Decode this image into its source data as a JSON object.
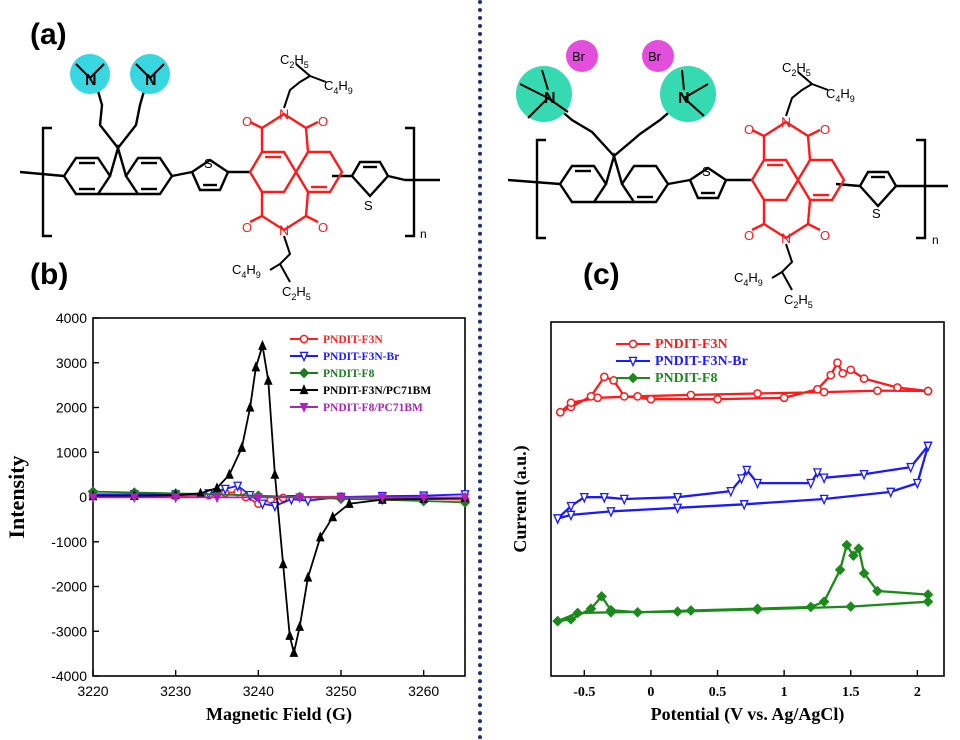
{
  "panels": {
    "a": "(a)",
    "b": "(b)",
    "c": "(c)"
  },
  "structures": {
    "left": {
      "amine_top_left": "N",
      "amine_top_right": "N",
      "imide_n_top": "N",
      "imide_n_bottom": "N",
      "thiophene_1": "S",
      "thiophene_2": "S",
      "sub_top_c": "C",
      "sub_top_c_idx": "2",
      "sub_top_h": "H",
      "sub_top_h_idx": "5",
      "sub_top2_c": "C",
      "sub_top2_c_idx": "4",
      "sub_top2_h": "H",
      "sub_top2_h_idx": "9",
      "sub_bot_c": "C",
      "sub_bot_c_idx": "4",
      "sub_bot_h": "H",
      "sub_bot_h_idx": "9",
      "sub_bot2_c": "C",
      "sub_bot2_c_idx": "2",
      "sub_bot2_h": "H",
      "sub_bot2_h_idx": "5",
      "repeat": "n"
    },
    "right": {
      "anion_1": "Br",
      "anion_2": "Br",
      "cation_1": "N",
      "cation_2": "N",
      "imide_n_top": "N",
      "imide_n_bottom": "N",
      "thiophene_1": "S",
      "thiophene_2": "S",
      "repeat": "n"
    },
    "colors": {
      "amine_circle": "#37d6e0",
      "quat_circle": "#35d9b2",
      "bromide_circle": "#e34fdc",
      "ndi": "#ff1a1a"
    }
  },
  "chart_data": [
    {
      "id": "b",
      "type": "line",
      "xlabel": "Magnetic Field (G)",
      "ylabel": "Intensity",
      "xlim": [
        3220,
        3265
      ],
      "ylim": [
        -4000,
        4000
      ],
      "xticks": [
        3220,
        3230,
        3240,
        3250,
        3260
      ],
      "yticks": [
        -4000,
        -3000,
        -2000,
        -1000,
        0,
        1000,
        2000,
        3000,
        4000
      ],
      "legend_position": "top-right",
      "series": [
        {
          "name": "PNDIT-F3N",
          "color": "#ff2020",
          "marker": "circle-open",
          "x": [
            3220,
            3225,
            3230,
            3234,
            3236,
            3237.5,
            3238.5,
            3240,
            3241.5,
            3243,
            3245,
            3250,
            3255,
            3260,
            3265
          ],
          "y": [
            30,
            30,
            30,
            40,
            90,
            110,
            0,
            -150,
            -60,
            -20,
            0,
            10,
            -20,
            -40,
            -60
          ]
        },
        {
          "name": "PNDIT-F3N-Br",
          "color": "#1a1aff",
          "marker": "triangle-down-open",
          "x": [
            3220,
            3225,
            3230,
            3234,
            3236,
            3237.5,
            3239,
            3240.5,
            3242,
            3244,
            3246,
            3250,
            3255,
            3260,
            3265
          ],
          "y": [
            60,
            60,
            60,
            80,
            180,
            250,
            40,
            -150,
            -200,
            -50,
            -80,
            0,
            20,
            30,
            60
          ]
        },
        {
          "name": "PNDIT-F8",
          "color": "#1f7a1f",
          "marker": "diamond",
          "x": [
            3220,
            3225,
            3230,
            3235,
            3240,
            3245,
            3250,
            3255,
            3260,
            3265
          ],
          "y": [
            120,
            100,
            80,
            60,
            30,
            0,
            -40,
            -60,
            -90,
            -120
          ]
        },
        {
          "name": "PNDIT-F3N/PC71BM",
          "color": "#000000",
          "marker": "triangle-up",
          "x": [
            3220,
            3225,
            3230,
            3233,
            3235,
            3236.5,
            3238,
            3239,
            3239.7,
            3240.5,
            3241.2,
            3242,
            3243,
            3243.8,
            3244.3,
            3245,
            3246,
            3247.5,
            3249,
            3251,
            3255,
            3260,
            3265
          ],
          "y": [
            20,
            25,
            40,
            80,
            200,
            500,
            1100,
            2000,
            2900,
            3380,
            2600,
            500,
            -1500,
            -3100,
            -3480,
            -2900,
            -1800,
            -900,
            -450,
            -150,
            -60,
            -40,
            -20
          ]
        },
        {
          "name": "PNDIT-F8/PC71BM",
          "color": "#b020c0",
          "marker": "triangle-down",
          "x": [
            3220,
            3225,
            3230,
            3235,
            3240,
            3245,
            3250,
            3255,
            3260,
            3265
          ],
          "y": [
            -10,
            -10,
            -10,
            -10,
            -10,
            -10,
            -10,
            -10,
            -10,
            -10
          ]
        }
      ]
    },
    {
      "id": "c",
      "type": "line",
      "xlabel": "Potential (V vs. Ag/AgCl)",
      "ylabel": "Current (a.u.)",
      "xlim": [
        -0.75,
        2.2
      ],
      "xticks": [
        -0.5,
        0,
        0.5,
        1,
        1.5,
        2
      ],
      "xtick_labels": [
        "-0.5",
        "0",
        "0.5",
        "1",
        "1.5",
        "2"
      ],
      "ylim": [
        0,
        1
      ],
      "yticks": [],
      "legend_position": "top-left",
      "series": [
        {
          "name": "PNDIT-F3N",
          "color": "#ff1a1a",
          "marker": "circle-open",
          "x": [
            2.08,
            1.85,
            1.6,
            1.5,
            1.44,
            1.4,
            1.35,
            1.25,
            1.0,
            0.5,
            0.0,
            -0.2,
            -0.28,
            -0.35,
            -0.45,
            -0.6,
            -0.68,
            -0.68,
            -0.6,
            -0.4,
            -0.1,
            0.3,
            0.8,
            1.3,
            1.7,
            2.08
          ],
          "y": [
            0.805,
            0.815,
            0.84,
            0.865,
            0.855,
            0.885,
            0.85,
            0.81,
            0.786,
            0.782,
            0.782,
            0.79,
            0.835,
            0.845,
            0.79,
            0.76,
            0.745,
            0.745,
            0.772,
            0.786,
            0.79,
            0.794,
            0.798,
            0.802,
            0.806,
            0.805
          ]
        },
        {
          "name": "PNDIT-F3N-Br",
          "color": "#1a1aff",
          "marker": "triangle-down-open",
          "x": [
            2.08,
            1.95,
            1.6,
            1.3,
            1.25,
            1.2,
            0.8,
            0.72,
            0.68,
            0.6,
            0.2,
            -0.2,
            -0.35,
            -0.5,
            -0.6,
            -0.7,
            -0.7,
            -0.6,
            -0.3,
            0.2,
            0.7,
            1.3,
            1.8,
            2.0,
            2.08
          ],
          "y": [
            0.65,
            0.59,
            0.57,
            0.56,
            0.575,
            0.545,
            0.545,
            0.582,
            0.558,
            0.522,
            0.505,
            0.5,
            0.505,
            0.505,
            0.48,
            0.445,
            0.445,
            0.455,
            0.465,
            0.475,
            0.485,
            0.5,
            0.52,
            0.545,
            0.65
          ]
        },
        {
          "name": "PNDIT-F8",
          "color": "#1a8a1a",
          "marker": "diamond",
          "x": [
            2.08,
            1.7,
            1.6,
            1.56,
            1.52,
            1.47,
            1.42,
            1.3,
            1.2,
            0.8,
            0.3,
            -0.1,
            -0.3,
            -0.37,
            -0.45,
            -0.6,
            -0.7,
            -0.7,
            -0.55,
            -0.3,
            0.2,
            0.8,
            1.5,
            2.08
          ],
          "y": [
            0.23,
            0.24,
            0.29,
            0.36,
            0.34,
            0.37,
            0.3,
            0.21,
            0.195,
            0.19,
            0.185,
            0.18,
            0.186,
            0.225,
            0.19,
            0.16,
            0.155,
            0.155,
            0.178,
            0.18,
            0.182,
            0.188,
            0.196,
            0.21
          ]
        }
      ]
    }
  ]
}
